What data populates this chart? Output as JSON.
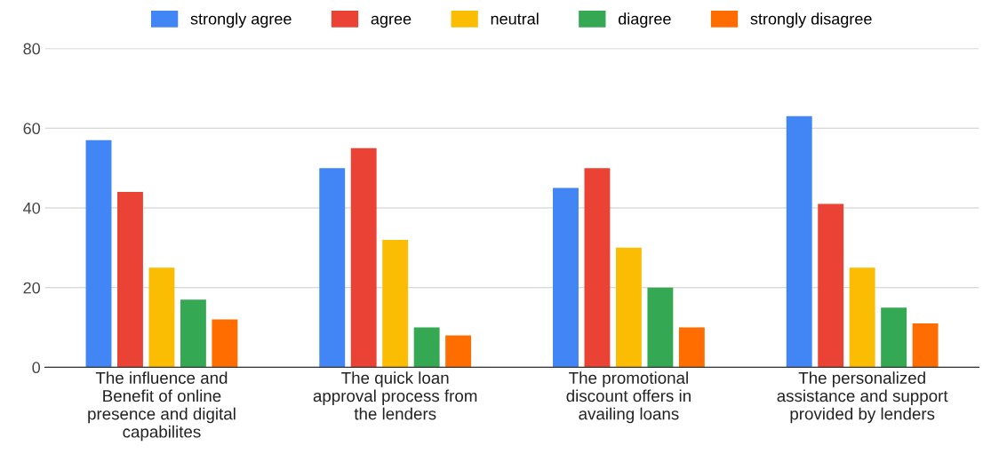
{
  "chart_data": {
    "type": "bar",
    "categories": [
      "The influence and Benefit of online presence and digital capabilites",
      "The quick loan approval process from the lenders",
      "The promotional discount offers in availing loans",
      "The personalized assistance and support provided by lenders"
    ],
    "series": [
      {
        "name": "strongly agree",
        "color": "#4285f4",
        "values": [
          57,
          50,
          45,
          63
        ]
      },
      {
        "name": "agree",
        "color": "#ea4335",
        "values": [
          44,
          55,
          50,
          41
        ]
      },
      {
        "name": "neutral",
        "color": "#fbbc04",
        "values": [
          25,
          32,
          30,
          25
        ]
      },
      {
        "name": "diagree",
        "color": "#34a853",
        "values": [
          17,
          10,
          20,
          15
        ]
      },
      {
        "name": "strongly disagree",
        "color": "#ff6d01",
        "values": [
          12,
          8,
          10,
          11
        ]
      }
    ],
    "ylim": [
      0,
      80
    ],
    "yticks": [
      0,
      20,
      40,
      60,
      80
    ],
    "grid": "y",
    "legend": "top"
  }
}
